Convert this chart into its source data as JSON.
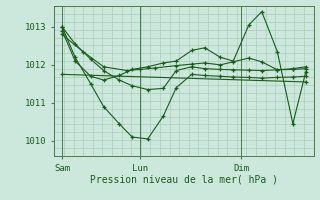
{
  "bg_color": "#cce8dc",
  "grid_color": "#aaccbb",
  "line_color": "#1a5c1a",
  "axis_color": "#4a7a4a",
  "text_color": "#1a5c1a",
  "xlabel": "Pression niveau de la mer( hPa )",
  "ylim": [
    1009.6,
    1013.55
  ],
  "yticks": [
    1010,
    1011,
    1012,
    1013
  ],
  "x_day_labels": [
    [
      "Sam",
      0.03
    ],
    [
      "Lun",
      0.33
    ],
    [
      "Dim",
      0.72
    ]
  ],
  "vlines": [
    0.03,
    0.33,
    0.72
  ],
  "series": [
    {
      "x": [
        0.03,
        0.08,
        0.14,
        0.19,
        0.25,
        0.3,
        0.36,
        0.42,
        0.47,
        0.53,
        0.58,
        0.64,
        0.69,
        0.75,
        0.8,
        0.86,
        0.92,
        0.97
      ],
      "y": [
        1013.0,
        1012.55,
        1012.15,
        1011.85,
        1011.6,
        1011.45,
        1011.35,
        1011.38,
        1011.85,
        1011.95,
        1011.9,
        1011.88,
        1011.87,
        1011.86,
        1011.85,
        1011.87,
        1011.88,
        1011.9
      ]
    },
    {
      "x": [
        0.03,
        0.08,
        0.14,
        0.19,
        0.25,
        0.3,
        0.36,
        0.42,
        0.47,
        0.53,
        0.58,
        0.64,
        0.69,
        0.75,
        0.8,
        0.86,
        0.92,
        0.97
      ],
      "y": [
        1013.0,
        1012.2,
        1011.5,
        1010.9,
        1010.45,
        1010.1,
        1010.05,
        1010.65,
        1011.4,
        1011.75,
        1011.72,
        1011.7,
        1011.68,
        1011.67,
        1011.65,
        1011.67,
        1011.68,
        1011.7
      ]
    },
    {
      "x": [
        0.03,
        0.11,
        0.19,
        0.28,
        0.33,
        0.39,
        0.47,
        0.53,
        0.58,
        0.64,
        0.69,
        0.75,
        0.8,
        0.86,
        0.92,
        0.97
      ],
      "y": [
        1012.8,
        1012.35,
        1011.95,
        1011.85,
        1011.88,
        1011.92,
        1011.98,
        1012.02,
        1012.05,
        1012.0,
        1012.08,
        1012.18,
        1012.08,
        1011.87,
        1011.9,
        1011.95
      ]
    },
    {
      "x": [
        0.03,
        0.08,
        0.14,
        0.19,
        0.25,
        0.3,
        0.36,
        0.42,
        0.47,
        0.53,
        0.58,
        0.64,
        0.69,
        0.75,
        0.8,
        0.86,
        0.92,
        0.97
      ],
      "y": [
        1012.9,
        1012.1,
        1011.7,
        1011.6,
        1011.72,
        1011.88,
        1011.95,
        1012.05,
        1012.1,
        1012.38,
        1012.45,
        1012.2,
        1012.1,
        1013.05,
        1013.4,
        1012.35,
        1010.45,
        1011.82
      ]
    },
    {
      "x": [
        0.03,
        0.97
      ],
      "y": [
        1011.75,
        1011.55
      ]
    }
  ]
}
